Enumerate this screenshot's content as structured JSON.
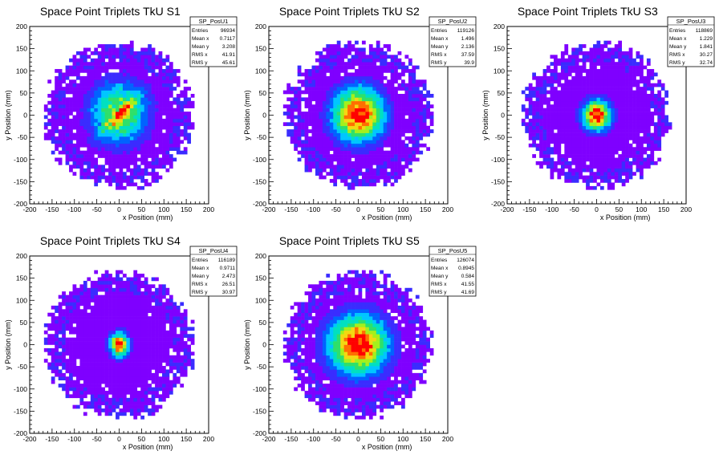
{
  "chart_data": [
    {
      "type": "heatmap",
      "title": "Space Point Triplets TkU S1",
      "xlabel": "x Position (mm)",
      "ylabel": "y Position (mm)",
      "xlim": [
        -200,
        200
      ],
      "ylim": [
        -200,
        200
      ],
      "xticks": [
        -200,
        -150,
        -100,
        -50,
        0,
        50,
        100,
        150,
        200
      ],
      "yticks": [
        -200,
        -150,
        -100,
        -50,
        0,
        50,
        100,
        150,
        200
      ],
      "grid": false,
      "stats": {
        "name": "SP_PosU1",
        "rows": [
          {
            "label": "Entries",
            "value": "96934"
          },
          {
            "label": "Mean x",
            "value": "0.7117"
          },
          {
            "label": "Mean y",
            "value": "3.208"
          },
          {
            "label": "RMS x",
            "value": "41.91"
          },
          {
            "label": "RMS y",
            "value": "45.61"
          }
        ]
      },
      "footprint_radius": 160,
      "core": {
        "center": [
          0,
          5
        ],
        "sigma": [
          40,
          44
        ],
        "hot_axis": "diagonal"
      }
    },
    {
      "type": "heatmap",
      "title": "Space Point Triplets TkU S2",
      "xlabel": "x Position (mm)",
      "ylabel": "y Position (mm)",
      "xlim": [
        -200,
        200
      ],
      "ylim": [
        -200,
        200
      ],
      "xticks": [
        -200,
        -150,
        -100,
        -50,
        0,
        50,
        100,
        150,
        200
      ],
      "yticks": [
        -200,
        -150,
        -100,
        -50,
        0,
        50,
        100,
        150,
        200
      ],
      "grid": false,
      "stats": {
        "name": "SP_PosU2",
        "rows": [
          {
            "label": "Entries",
            "value": "119126"
          },
          {
            "label": "Mean x",
            "value": "1.496"
          },
          {
            "label": "Mean y",
            "value": "2.136"
          },
          {
            "label": "RMS x",
            "value": "37.59"
          },
          {
            "label": "RMS y",
            "value": "39.9"
          }
        ]
      },
      "footprint_radius": 160,
      "core": {
        "center": [
          0,
          2
        ],
        "sigma": [
          36,
          38
        ],
        "hot_axis": "none"
      }
    },
    {
      "type": "heatmap",
      "title": "Space Point Triplets TkU S3",
      "xlabel": "x Position (mm)",
      "ylabel": "y Position (mm)",
      "xlim": [
        -200,
        200
      ],
      "ylim": [
        -200,
        200
      ],
      "xticks": [
        -200,
        -150,
        -100,
        -50,
        0,
        50,
        100,
        150,
        200
      ],
      "yticks": [
        -200,
        -150,
        -100,
        -50,
        0,
        50,
        100,
        150,
        200
      ],
      "grid": false,
      "stats": {
        "name": "SP_PosU3",
        "rows": [
          {
            "label": "Entries",
            "value": "118869"
          },
          {
            "label": "Mean x",
            "value": "1.229"
          },
          {
            "label": "Mean y",
            "value": "1.841"
          },
          {
            "label": "RMS x",
            "value": "30.27"
          },
          {
            "label": "RMS y",
            "value": "32.74"
          }
        ]
      },
      "footprint_radius": 160,
      "core": {
        "center": [
          0,
          0
        ],
        "sigma": [
          20,
          22
        ],
        "hot_axis": "none"
      }
    },
    {
      "type": "heatmap",
      "title": "Space Point Triplets TkU S4",
      "xlabel": "x Position (mm)",
      "ylabel": "y Position (mm)",
      "xlim": [
        -200,
        200
      ],
      "ylim": [
        -200,
        200
      ],
      "xticks": [
        -200,
        -150,
        -100,
        -50,
        0,
        50,
        100,
        150,
        200
      ],
      "yticks": [
        -200,
        -150,
        -100,
        -50,
        0,
        50,
        100,
        150,
        200
      ],
      "grid": false,
      "stats": {
        "name": "SP_PosU4",
        "rows": [
          {
            "label": "Entries",
            "value": "116189"
          },
          {
            "label": "Mean x",
            "value": "0.9711"
          },
          {
            "label": "Mean y",
            "value": "2.473"
          },
          {
            "label": "RMS x",
            "value": "26.51"
          },
          {
            "label": "RMS y",
            "value": "30.97"
          }
        ]
      },
      "footprint_radius": 160,
      "core": {
        "center": [
          0,
          0
        ],
        "sigma": [
          13,
          17
        ],
        "hot_axis": "none"
      }
    },
    {
      "type": "heatmap",
      "title": "Space Point Triplets TkU S5",
      "xlabel": "x Position (mm)",
      "ylabel": "y Position (mm)",
      "xlim": [
        -200,
        200
      ],
      "ylim": [
        -200,
        200
      ],
      "xticks": [
        -200,
        -150,
        -100,
        -50,
        0,
        50,
        100,
        150,
        200
      ],
      "yticks": [
        -200,
        -150,
        -100,
        -50,
        0,
        50,
        100,
        150,
        200
      ],
      "grid": false,
      "stats": {
        "name": "SP_PosU5",
        "rows": [
          {
            "label": "Entries",
            "value": "126074"
          },
          {
            "label": "Mean x",
            "value": "0.8945"
          },
          {
            "label": "Mean y",
            "value": "0.584"
          },
          {
            "label": "RMS x",
            "value": "41.55"
          },
          {
            "label": "RMS y",
            "value": "41.69"
          }
        ]
      },
      "footprint_radius": 160,
      "core": {
        "center": [
          0,
          0
        ],
        "sigma": [
          42,
          42
        ],
        "hot_axis": "none"
      }
    }
  ],
  "palette": [
    "#7f00ff",
    "#3a2cff",
    "#0063ff",
    "#00c6ff",
    "#00e0c0",
    "#2ee06a",
    "#a4f01c",
    "#f3d811",
    "#ff6e00",
    "#ff0000"
  ]
}
